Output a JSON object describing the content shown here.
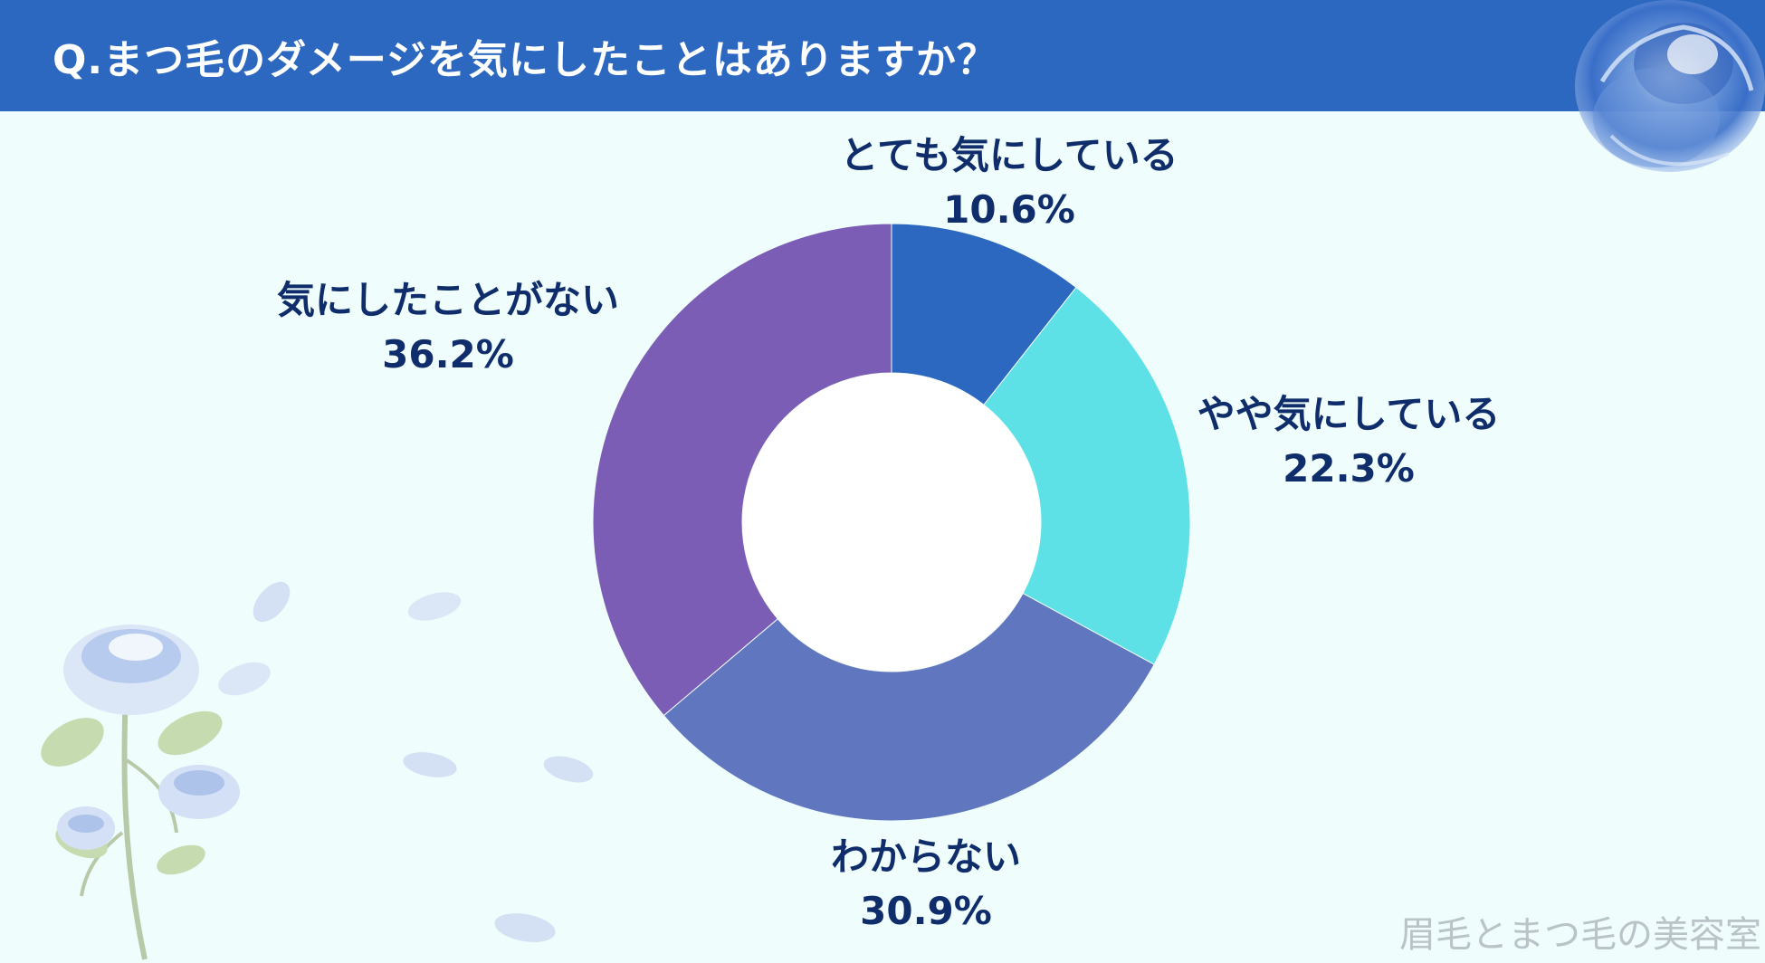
{
  "header": {
    "title": "Q.まつ毛のダメージを気にしたことはありますか？",
    "color": "#2c68bf"
  },
  "chart_data": {
    "type": "pie",
    "donut": true,
    "title": "Q.まつ毛のダメージを気にしたことはありますか？",
    "slices": [
      {
        "label": "とても気にしている",
        "value": 10.6,
        "value_label": "10.6%",
        "color": "#2c68bf"
      },
      {
        "label": "やや気にしている",
        "value": 22.3,
        "value_label": "22.3%",
        "color": "#5de0e6"
      },
      {
        "label": "わからない",
        "value": 30.9,
        "value_label": "30.9%",
        "color": "#6077c0"
      },
      {
        "label": "気にしたことがない",
        "value": 36.2,
        "value_label": "36.2%",
        "color": "#7c5db5"
      }
    ],
    "label_color": "#0f2d6b",
    "start_angle": "12 o'clock, clockwise"
  },
  "watermark": "眉毛とまつ毛の美容室",
  "decorations": {
    "top_right": "blue-rose-icon",
    "bottom_left": "blue-rose-branch-icon",
    "petals": "petal-icon"
  }
}
